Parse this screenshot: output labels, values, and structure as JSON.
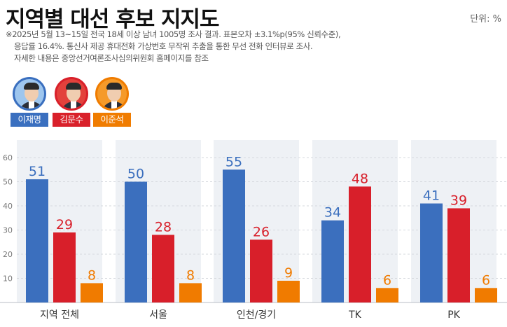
{
  "title": "지역별 대선 후보 지지도",
  "unit": "단위: %",
  "notes": [
    "※2025년 5월 13~15일 전국 18세 이상 남녀 1005명 조사 결과. 표본오차 ±3.1%p(95% 신뢰수준),",
    "응답률 16.4%. 통신사 제공 휴대전화 가상번호 무작위 추출을 통한 무선 전화 인터뷰로 조사.",
    "자세한 내용은 중앙선거여론조사심의위원회 홈페이지를 참조"
  ],
  "candidates": [
    {
      "name": "이재명",
      "color": "#3a6fbf",
      "ring": "#3a6fbf",
      "bg": "#9ec6ee"
    },
    {
      "name": "김문수",
      "color": "#d9202a",
      "ring": "#d9202a",
      "bg": "#e3413c"
    },
    {
      "name": "이준석",
      "color": "#f07c00",
      "ring": "#f07c00",
      "bg": "#f59a2a"
    }
  ],
  "chart_data": {
    "type": "bar",
    "categories": [
      "지역 전체",
      "서울",
      "인천/경기",
      "TK",
      "PK"
    ],
    "series": [
      {
        "name": "이재명",
        "color": "#3b6fbe",
        "values": [
          51,
          50,
          55,
          34,
          41
        ]
      },
      {
        "name": "김문수",
        "color": "#d81f2a",
        "values": [
          29,
          28,
          26,
          48,
          39
        ]
      },
      {
        "name": "이준석",
        "color": "#f07b00",
        "values": [
          8,
          8,
          9,
          6,
          6
        ]
      }
    ],
    "yticks": [
      10,
      20,
      30,
      40,
      50,
      60
    ],
    "ylim": [
      0,
      65
    ],
    "grid": true,
    "legend": "top-left"
  }
}
